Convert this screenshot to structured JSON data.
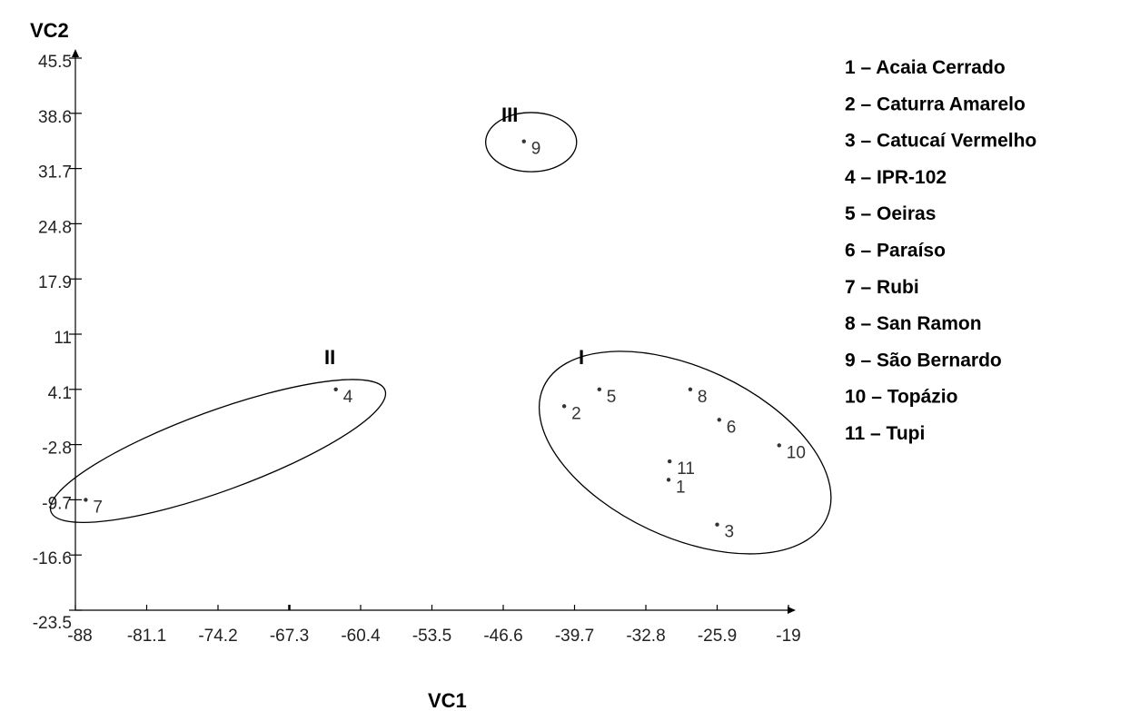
{
  "chart_data": {
    "type": "scatter",
    "xlabel": "VC1",
    "ylabel": "VC2",
    "xlim": [
      -88,
      -19
    ],
    "ylim": [
      -23.5,
      45.5
    ],
    "x_ticks": [
      "-88",
      "-81.1",
      "-74.2",
      "-67.3",
      "-60.4",
      "-53.5",
      "-46.6",
      "-39.7",
      "-32.8",
      "-25.9",
      "-19"
    ],
    "y_ticks": [
      "-23.5",
      "-16.6",
      "-9.7",
      "-2.8",
      "4.1",
      "11",
      "17.9",
      "24.8",
      "31.7",
      "38.6",
      "45.5"
    ],
    "points": [
      {
        "label": "1",
        "x": -30.6,
        "y": -7.2
      },
      {
        "label": "2",
        "x": -40.7,
        "y": 2.0
      },
      {
        "label": "3",
        "x": -25.9,
        "y": -12.8
      },
      {
        "label": "4",
        "x": -62.8,
        "y": 4.1
      },
      {
        "label": "5",
        "x": -37.3,
        "y": 4.1
      },
      {
        "label": "6",
        "x": -25.7,
        "y": 0.3
      },
      {
        "label": "7",
        "x": -87.0,
        "y": -9.7
      },
      {
        "label": "8",
        "x": -28.5,
        "y": 4.1
      },
      {
        "label": "9",
        "x": -44.6,
        "y": 35.1
      },
      {
        "label": "10",
        "x": -19.9,
        "y": -2.9
      },
      {
        "label": "11",
        "x": -30.5,
        "y": -4.9
      }
    ],
    "groups": [
      {
        "label": "I",
        "cx": -29.0,
        "cy": -3.8,
        "rx": 15.1,
        "ry": 10.6,
        "rotate": 25
      },
      {
        "label": "II",
        "cx": -74.2,
        "cy": -3.6,
        "rx": 17.2,
        "ry": 5.0,
        "rotate": -20
      },
      {
        "label": "III",
        "cx": -43.9,
        "cy": 35.0,
        "rx": 4.4,
        "ry": 3.7,
        "rotate": 0
      }
    ],
    "legend": [
      "1 – Acaia Cerrado",
      "2 – Caturra Amarelo",
      "3 – Catucaí Vermelho",
      "4 – IPR-102",
      "5 – Oeiras",
      "6 – Paraíso",
      "7 – Rubi",
      "8 – San Ramon",
      "9 – São Bernardo",
      "10 – Topázio",
      "11 – Tupi"
    ]
  }
}
